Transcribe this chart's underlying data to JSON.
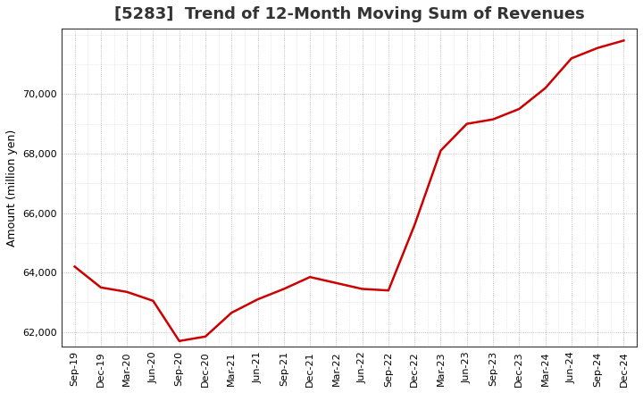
{
  "title": "[5283]  Trend of 12-Month Moving Sum of Revenues",
  "ylabel": "Amount (million yen)",
  "line_color": "#cc0000",
  "background_color": "#ffffff",
  "plot_bg_color": "#ffffff",
  "grid_color": "#999999",
  "x_labels": [
    "Sep-19",
    "Dec-19",
    "Mar-20",
    "Jun-20",
    "Sep-20",
    "Dec-20",
    "Mar-21",
    "Jun-21",
    "Sep-21",
    "Dec-21",
    "Mar-22",
    "Jun-22",
    "Sep-22",
    "Dec-22",
    "Mar-23",
    "Jun-23",
    "Sep-23",
    "Dec-23",
    "Mar-24",
    "Jun-24",
    "Sep-24",
    "Dec-24"
  ],
  "y_values": [
    64200,
    63500,
    63350,
    63050,
    61700,
    61850,
    62650,
    63100,
    63450,
    63850,
    63650,
    63450,
    63400,
    65600,
    68100,
    69000,
    69150,
    69500,
    70200,
    71200,
    71550,
    71800
  ],
  "ylim": [
    61500,
    72200
  ],
  "yticks": [
    62000,
    64000,
    66000,
    68000,
    70000
  ],
  "line_width": 1.8,
  "title_fontsize": 13,
  "axis_fontsize": 9,
  "tick_fontsize": 8
}
